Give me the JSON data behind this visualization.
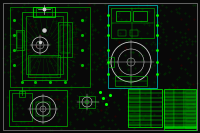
{
  "bg_color": "#080808",
  "green_bright": "#00ff00",
  "green_dim": "#005500",
  "green_mid": "#00bb00",
  "green_text": "#22ff22",
  "cyan": "#00cccc",
  "cyan_dim": "#008888",
  "white": "#cccccc",
  "gray": "#888888",
  "dot_color": "#003300",
  "red": "#cc0000"
}
